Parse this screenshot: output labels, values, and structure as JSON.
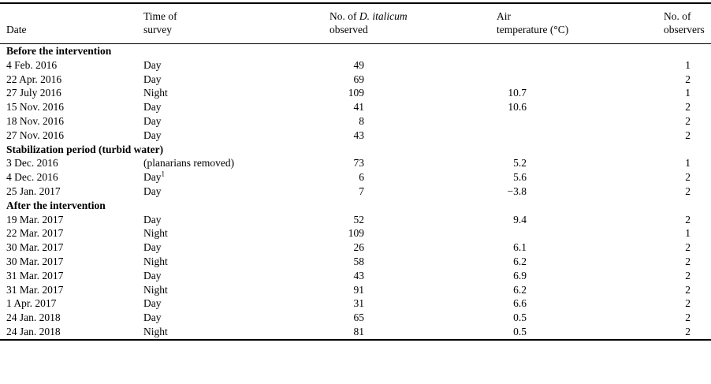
{
  "table": {
    "headers": {
      "date": "Date",
      "time_line1": "Time of",
      "time_line2": "survey",
      "observed_pre": "No. of ",
      "observed_italic": "D. italicum",
      "observed_line2": "observed",
      "temp_line1": "Air",
      "temp_line2": "temperature (°C)",
      "observers_line1": "No. of",
      "observers_line2": "observers"
    },
    "sections": [
      {
        "title": "Before the intervention",
        "rows": [
          {
            "date": "4 Feb. 2016",
            "time": "Day",
            "observed": "49",
            "temp": "",
            "observers": "1"
          },
          {
            "date": "22 Apr. 2016",
            "time": "Day",
            "observed": "69",
            "temp": "",
            "observers": "2"
          },
          {
            "date": "27 July 2016",
            "time": "Night",
            "observed": "109",
            "temp": "10.7",
            "observers": "1"
          },
          {
            "date": "15 Nov. 2016",
            "time": "Day",
            "observed": "41",
            "temp": "10.6",
            "observers": "2"
          },
          {
            "date": "18 Nov. 2016",
            "time": "Day",
            "observed": "8",
            "temp": "",
            "observers": "2"
          },
          {
            "date": "27 Nov. 2016",
            "time": "Day",
            "observed": "43",
            "temp": "",
            "observers": "2"
          }
        ]
      },
      {
        "title": "Stabilization period (turbid water)",
        "rows": [
          {
            "date": "3 Dec. 2016",
            "time": "(planarians removed)",
            "observed": "73",
            "temp": "5.2",
            "observers": "1"
          },
          {
            "date": "4 Dec. 2016",
            "time": "Day",
            "time_sup": "1",
            "observed": "6",
            "temp": "5.6",
            "observers": "2"
          },
          {
            "date": "25 Jan. 2017",
            "time": "Day",
            "observed": "7",
            "temp": "−3.8",
            "observers": "2"
          }
        ]
      },
      {
        "title": "After the intervention",
        "rows": [
          {
            "date": "19 Mar. 2017",
            "time": "Day",
            "observed": "52",
            "temp": "9.4",
            "observers": "2"
          },
          {
            "date": "22 Mar. 2017",
            "time": "Night",
            "observed": "109",
            "temp": "",
            "observers": "1"
          },
          {
            "date": "30 Mar. 2017",
            "time": "Day",
            "observed": "26",
            "temp": "6.1",
            "observers": "2"
          },
          {
            "date": "30 Mar. 2017",
            "time": "Night",
            "observed": "58",
            "temp": "6.2",
            "observers": "2"
          },
          {
            "date": "31 Mar. 2017",
            "time": "Day",
            "observed": "43",
            "temp": "6.9",
            "observers": "2"
          },
          {
            "date": "31 Mar. 2017",
            "time": "Night",
            "observed": "91",
            "temp": "6.2",
            "observers": "2"
          },
          {
            "date": "1 Apr. 2017",
            "time": "Day",
            "observed": "31",
            "temp": "6.6",
            "observers": "2"
          },
          {
            "date": "24 Jan. 2018",
            "time": "Day",
            "observed": "65",
            "temp": "0.5",
            "observers": "2"
          },
          {
            "date": "24 Jan. 2018",
            "time": "Night",
            "observed": "81",
            "temp": "0.5",
            "observers": "2"
          }
        ]
      }
    ]
  }
}
